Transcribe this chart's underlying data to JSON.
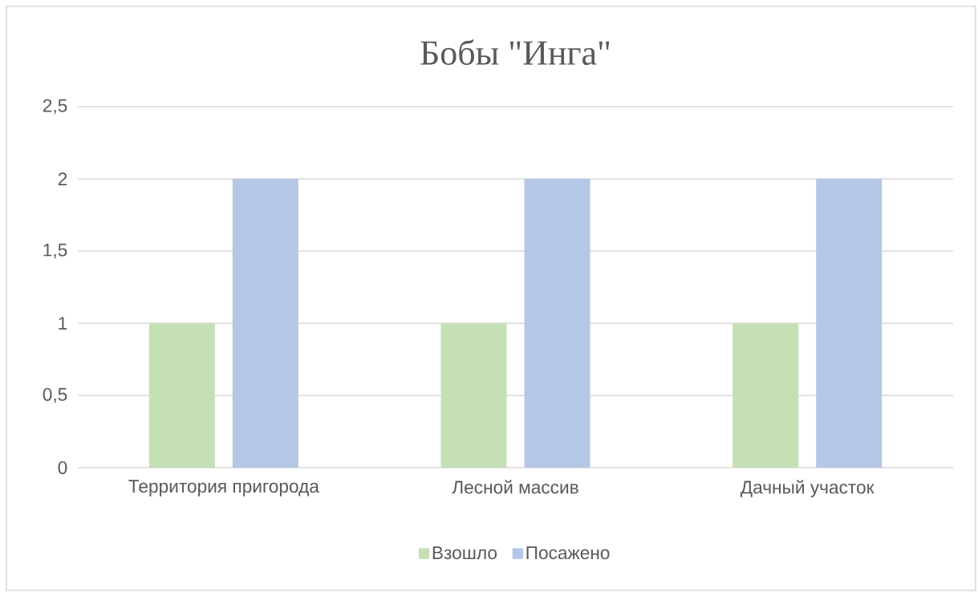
{
  "chart_data": {
    "type": "bar",
    "title": "Бобы \"Инга\"",
    "categories": [
      "Территория пригорода",
      "Лесной массив",
      "Дачный участок"
    ],
    "series": [
      {
        "name": "Взошло",
        "color": "#c5e0b4",
        "values": [
          1,
          1,
          1
        ]
      },
      {
        "name": "Посажено",
        "color": "#b4c7e7",
        "values": [
          2,
          2,
          2
        ]
      }
    ],
    "ylim": [
      0,
      2.5
    ],
    "yticks": [
      0,
      {
        "value": 0.5,
        "label": "0,5"
      },
      1,
      {
        "value": 1.5,
        "label": "1,5"
      },
      2,
      {
        "value": 2.5,
        "label": "2,5"
      }
    ],
    "grid": "y",
    "legend": "bottom"
  }
}
